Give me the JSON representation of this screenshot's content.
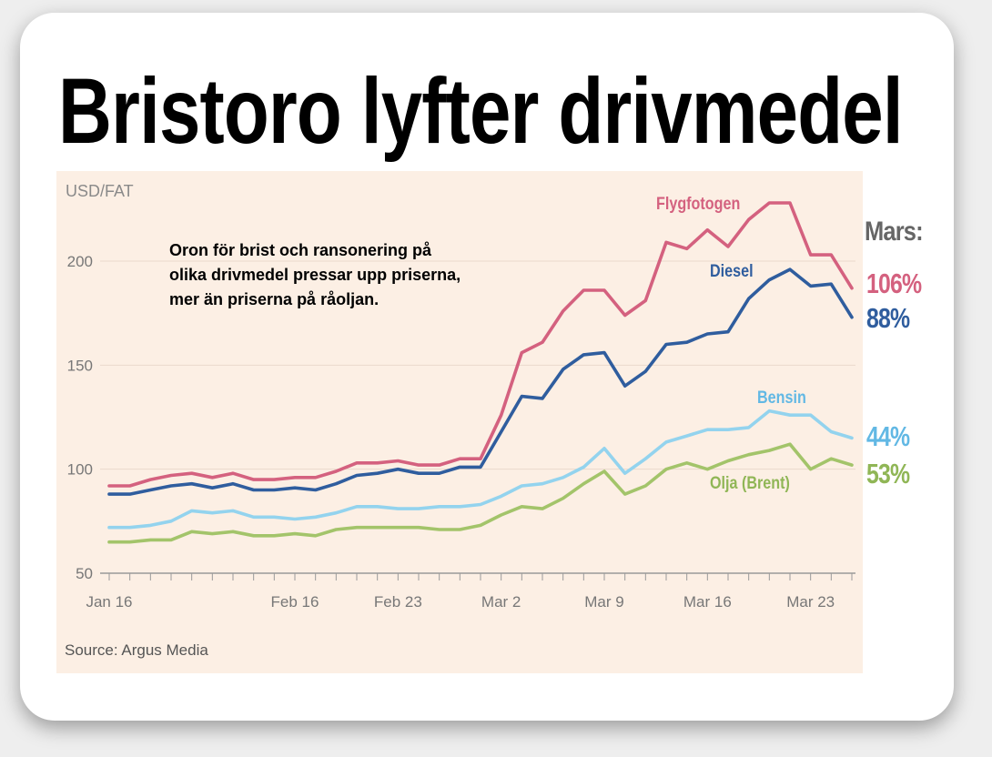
{
  "title": "Bristoro lyfter drivmedel",
  "annotation": "Oron för brist och ransonering på olika drivmedel pressar upp priserna, mer än priserna på råoljan.",
  "mars_label": "Mars:",
  "mars_changes": [
    {
      "series": "Flygfotogen",
      "text": "106%",
      "color": "#d4617f"
    },
    {
      "series": "Diesel",
      "text": "88%",
      "color": "#2f5d9e"
    },
    {
      "series": "Bensin",
      "text": "44%",
      "color": "#62b8e4"
    },
    {
      "series": "Olja (Brent)",
      "text": "53%",
      "color": "#90b656"
    }
  ],
  "chart_data": {
    "type": "line",
    "ylabel": "USD/FAT",
    "source": "Source: Argus Media",
    "ylim": [
      45,
      230
    ],
    "yticks": [
      50,
      100,
      150,
      200
    ],
    "xticks": [
      {
        "label": "Jan 16",
        "i": 0
      },
      {
        "label": "Feb 16",
        "i": 9
      },
      {
        "label": "Feb 23",
        "i": 14
      },
      {
        "label": "Mar 2",
        "i": 19
      },
      {
        "label": "Mar 9",
        "i": 24
      },
      {
        "label": "Mar 16",
        "i": 29
      },
      {
        "label": "Mar 23",
        "i": 34
      }
    ],
    "x_count": 37,
    "series": [
      {
        "name": "Flygfotogen",
        "color": "#d4617f",
        "values": [
          92,
          92,
          95,
          97,
          98,
          96,
          98,
          95,
          95,
          96,
          96,
          99,
          103,
          103,
          104,
          102,
          102,
          105,
          105,
          126,
          156,
          161,
          176,
          186,
          186,
          174,
          181,
          209,
          206,
          215,
          207,
          220,
          228,
          228,
          203,
          203,
          187
        ]
      },
      {
        "name": "Diesel",
        "color": "#2f5d9e",
        "values": [
          88,
          88,
          90,
          92,
          93,
          91,
          93,
          90,
          90,
          91,
          90,
          93,
          97,
          98,
          100,
          98,
          98,
          101,
          101,
          118,
          135,
          134,
          148,
          155,
          156,
          140,
          147,
          160,
          161,
          165,
          166,
          182,
          191,
          196,
          188,
          189,
          173
        ]
      },
      {
        "name": "Bensin",
        "color": "#93d3ee",
        "values": [
          72,
          72,
          73,
          75,
          80,
          79,
          80,
          77,
          77,
          76,
          77,
          79,
          82,
          82,
          81,
          81,
          82,
          82,
          83,
          87,
          92,
          93,
          96,
          101,
          110,
          98,
          105,
          113,
          116,
          119,
          119,
          120,
          128,
          126,
          126,
          118,
          115
        ]
      },
      {
        "name": "Olja (Brent)",
        "color": "#a3c46a",
        "values": [
          65,
          65,
          66,
          66,
          70,
          69,
          70,
          68,
          68,
          69,
          68,
          71,
          72,
          72,
          72,
          72,
          71,
          71,
          73,
          78,
          82,
          81,
          86,
          93,
          99,
          88,
          92,
          100,
          103,
          100,
          104,
          107,
          109,
          112,
          100,
          105,
          102
        ]
      }
    ],
    "series_labels": [
      {
        "name": "Flygfotogen",
        "color": "#d4617f"
      },
      {
        "name": "Diesel",
        "color": "#2f5d9e"
      },
      {
        "name": "Bensin",
        "color": "#62b8e4"
      },
      {
        "name": "Olja (Brent)",
        "color": "#90b656"
      }
    ]
  }
}
